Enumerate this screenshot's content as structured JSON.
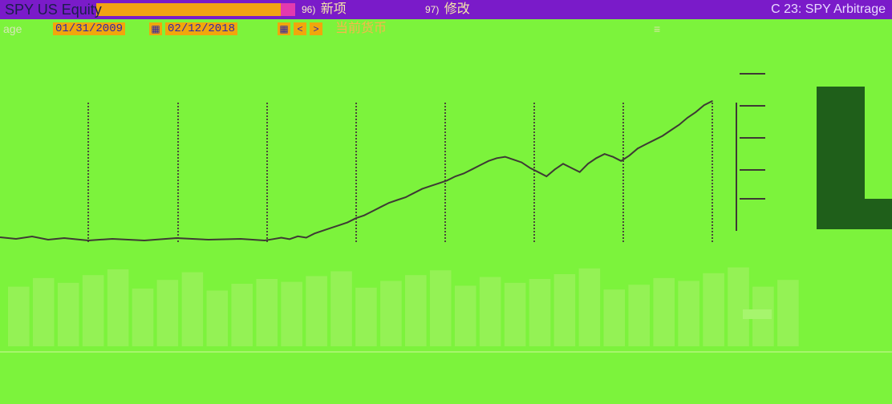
{
  "titlebar": {
    "ticker": "SPY US Equity",
    "menu": [
      {
        "num": "96)",
        "label": "新项"
      },
      {
        "num": "97)",
        "label": "修改"
      }
    ],
    "right": "C 23: SPY Arbitrage"
  },
  "toolbar": {
    "range_label": "age",
    "start_date": "01/31/2009",
    "end_date": "02/12/2018",
    "currency": "当前货币",
    "nav_prev": "<",
    "nav_next": ">"
  },
  "chart_data": {
    "type": "line",
    "title": "",
    "xlabel": "",
    "ylabel": "",
    "series": [
      {
        "values": [
          0.0,
          0.01,
          0.02,
          0.01,
          0.03,
          0.02,
          0.05,
          0.07,
          0.09,
          0.11,
          0.13,
          0.16,
          0.18,
          0.21,
          0.24,
          0.27,
          0.29,
          0.31,
          0.34,
          0.37,
          0.39,
          0.41,
          0.43,
          0.46,
          0.48,
          0.51,
          0.54,
          0.57,
          0.59,
          0.6,
          0.58,
          0.56,
          0.52,
          0.49,
          0.46,
          0.51,
          0.55,
          0.52,
          0.49,
          0.55,
          0.59,
          0.62,
          0.6,
          0.57,
          0.61,
          0.66,
          0.69,
          0.72,
          0.75,
          0.79,
          0.83,
          0.88,
          0.92,
          0.97,
          1.0
        ]
      }
    ]
  },
  "bottom_chart": {
    "type": "bar",
    "values": [
      0.62,
      0.71,
      0.66,
      0.74,
      0.8,
      0.6,
      0.69,
      0.77,
      0.58,
      0.65,
      0.7,
      0.67,
      0.73,
      0.78,
      0.61,
      0.68,
      0.74,
      0.79,
      0.63,
      0.72,
      0.66,
      0.7,
      0.75,
      0.81,
      0.59,
      0.64,
      0.71,
      0.68,
      0.76,
      0.82,
      0.62,
      0.69
    ]
  },
  "colors": {
    "background": "#7CF33C",
    "line": "#3E3A34",
    "accent": "#F1A60C",
    "title_bar": "#7A1BC9",
    "bars": "#A8F06A",
    "right_panel": "#1F5F1A"
  },
  "icons": [
    "calendar-icon",
    "chevron-left-icon",
    "chevron-right-icon",
    "menu-icon"
  ]
}
